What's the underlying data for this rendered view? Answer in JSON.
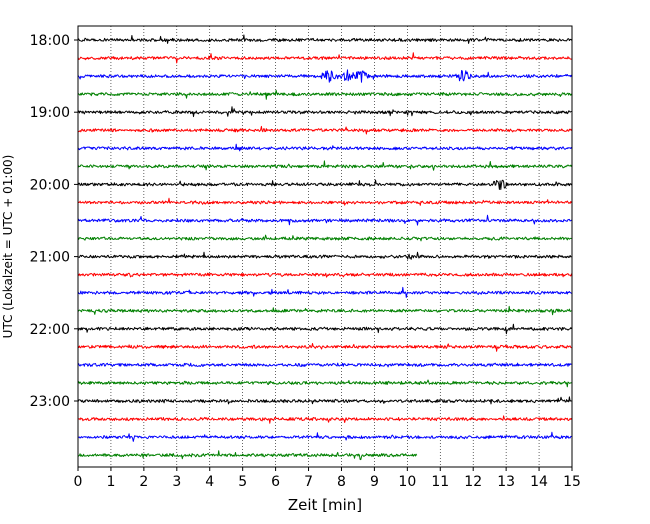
{
  "chart_data": {
    "type": "line",
    "title": "",
    "xlabel": "Zeit  [min]",
    "ylabel": "UTC (Lokalzeit = UTC + 01:00)",
    "xlim": [
      0,
      15
    ],
    "x_ticks": [
      0,
      1,
      2,
      3,
      4,
      5,
      6,
      7,
      8,
      9,
      10,
      11,
      12,
      13,
      14,
      15
    ],
    "y_tick_labels": [
      "18:00",
      "19:00",
      "20:00",
      "21:00",
      "22:00",
      "23:00"
    ],
    "grid": "vertical dotted lines at each minute",
    "row_interval_minutes": 15,
    "colors": [
      "#000000",
      "#ff0000",
      "#0000ff",
      "#008000"
    ],
    "series": [
      {
        "start": "18:00",
        "end_min": 15,
        "color": "#000000"
      },
      {
        "start": "18:15",
        "end_min": 15,
        "color": "#ff0000"
      },
      {
        "start": "18:30",
        "end_min": 15,
        "color": "#0000ff",
        "bursts_min": [
          7.6,
          8.2,
          8.6,
          11.7
        ]
      },
      {
        "start": "18:45",
        "end_min": 15,
        "color": "#008000"
      },
      {
        "start": "19:00",
        "end_min": 15,
        "color": "#000000"
      },
      {
        "start": "19:15",
        "end_min": 15,
        "color": "#ff0000"
      },
      {
        "start": "19:30",
        "end_min": 15,
        "color": "#0000ff"
      },
      {
        "start": "19:45",
        "end_min": 15,
        "color": "#008000"
      },
      {
        "start": "20:00",
        "end_min": 15,
        "color": "#000000",
        "bursts_min": [
          12.8
        ]
      },
      {
        "start": "20:15",
        "end_min": 15,
        "color": "#ff0000"
      },
      {
        "start": "20:30",
        "end_min": 15,
        "color": "#0000ff"
      },
      {
        "start": "20:45",
        "end_min": 15,
        "color": "#008000"
      },
      {
        "start": "21:00",
        "end_min": 15,
        "color": "#000000"
      },
      {
        "start": "21:15",
        "end_min": 15,
        "color": "#ff0000"
      },
      {
        "start": "21:30",
        "end_min": 15,
        "color": "#0000ff"
      },
      {
        "start": "21:45",
        "end_min": 15,
        "color": "#008000"
      },
      {
        "start": "22:00",
        "end_min": 15,
        "color": "#000000"
      },
      {
        "start": "22:15",
        "end_min": 15,
        "color": "#ff0000"
      },
      {
        "start": "22:30",
        "end_min": 15,
        "color": "#0000ff"
      },
      {
        "start": "22:45",
        "end_min": 15,
        "color": "#008000"
      },
      {
        "start": "23:00",
        "end_min": 15,
        "color": "#000000"
      },
      {
        "start": "23:15",
        "end_min": 15,
        "color": "#ff0000"
      },
      {
        "start": "23:30",
        "end_min": 15,
        "color": "#0000ff"
      },
      {
        "start": "23:45",
        "end_min": 10.3,
        "color": "#008000"
      }
    ]
  }
}
